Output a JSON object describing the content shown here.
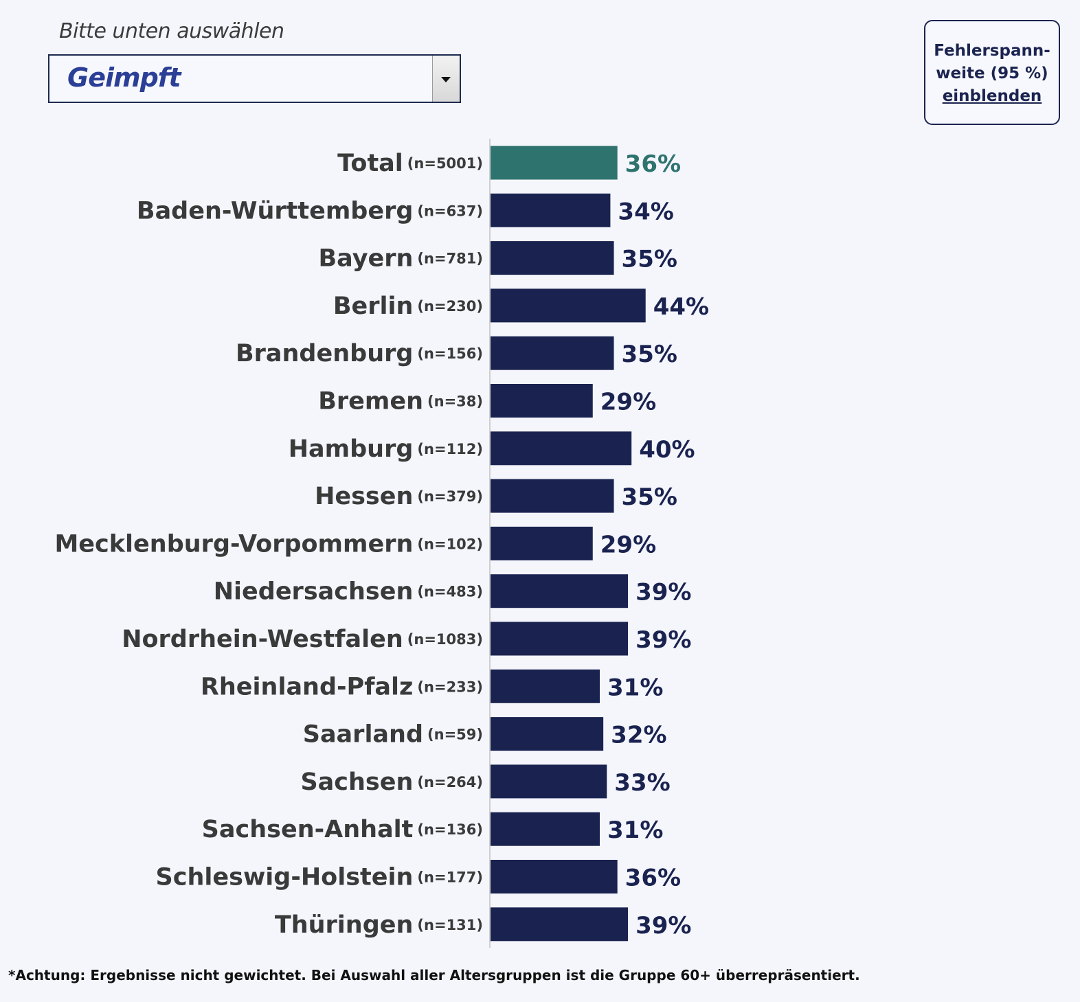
{
  "selector": {
    "label": "Bitte unten auswählen",
    "value": "Geimpft"
  },
  "error_toggle": {
    "line1": "Fehlerspann-",
    "line2": "weite (95 %)",
    "link": "einblenden"
  },
  "footnote": "*Achtung: Ergebnisse nicht gewichtet. Bei Auswahl aller Altersgruppen ist die Gruppe 60+ überrepräsentiert.",
  "colors": {
    "total_bar": "#2e736e",
    "bar": "#1a2350",
    "axis": "#cfcfcf"
  },
  "chart_data": {
    "type": "bar",
    "orientation": "horizontal",
    "title": "",
    "xlabel": "",
    "ylabel": "",
    "xlim": [
      0,
      100
    ],
    "value_format": "percent",
    "categories": [
      "Total",
      "Baden-Württemberg",
      "Bayern",
      "Berlin",
      "Brandenburg",
      "Bremen",
      "Hamburg",
      "Hessen",
      "Mecklenburg-Vorpommern",
      "Niedersachsen",
      "Nordrhein-Westfalen",
      "Rheinland-Pfalz",
      "Saarland",
      "Sachsen",
      "Sachsen-Anhalt",
      "Schleswig-Holstein",
      "Thüringen"
    ],
    "sample_sizes": [
      "(n=5001)",
      "(n=637)",
      "(n=781)",
      "(n=230)",
      "(n=156)",
      "(n=38)",
      "(n=112)",
      "(n=379)",
      "(n=102)",
      "(n=483)",
      "(n=1083)",
      "(n=233)",
      "(n=59)",
      "(n=264)",
      "(n=136)",
      "(n=177)",
      "(n=131)"
    ],
    "values": [
      36,
      34,
      35,
      44,
      35,
      29,
      40,
      35,
      29,
      39,
      39,
      31,
      32,
      33,
      31,
      36,
      39
    ],
    "value_labels": [
      "36%",
      "34%",
      "35%",
      "44%",
      "35%",
      "29%",
      "40%",
      "35%",
      "29%",
      "39%",
      "39%",
      "31%",
      "32%",
      "33%",
      "31%",
      "36%",
      "39%"
    ],
    "highlight_index": 0
  }
}
